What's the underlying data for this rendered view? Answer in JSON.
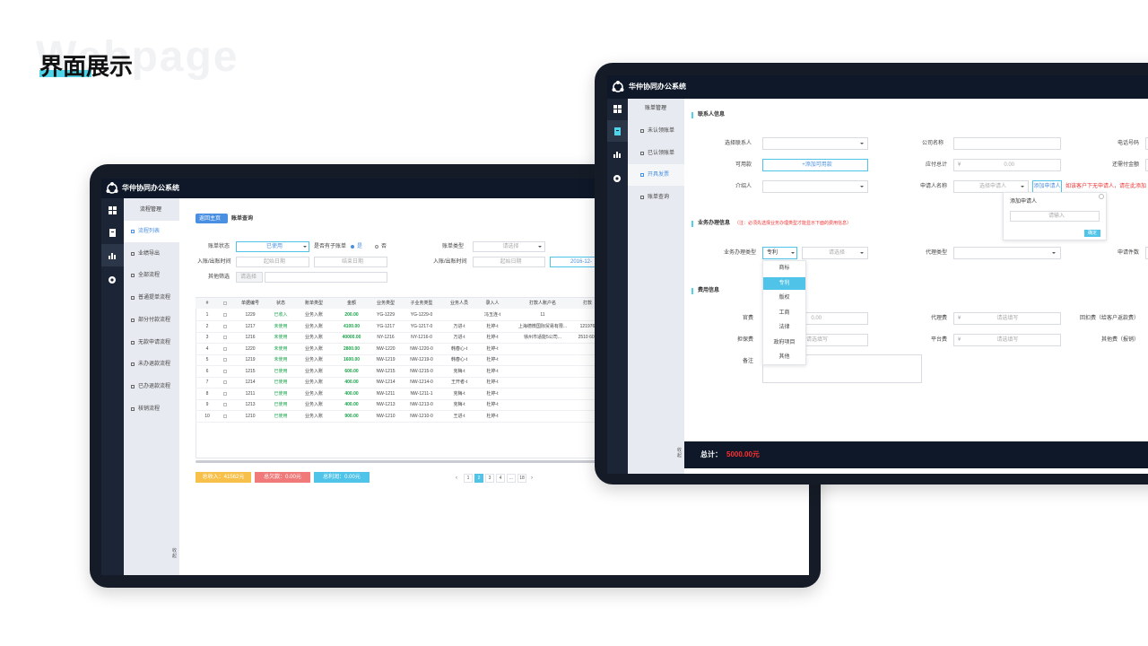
{
  "page": {
    "title": "界面展示",
    "watermark": "Webpage"
  },
  "left": {
    "app_name": "华仲协同办公系统",
    "menu_title": "流程管理",
    "menu": [
      "流程列表",
      "业绩导出",
      "全部流程",
      "普通提单流程",
      "部分付款流程",
      "无款申请流程",
      "未办退款流程",
      "已办退款流程",
      "核销流程"
    ],
    "collapse": "收起",
    "back": "返回主页",
    "crumb": "账单查询",
    "filters": {
      "status_label": "账单状态",
      "status_value": "已使用",
      "has_sub": "是否有子账单",
      "yes": "是",
      "no": "否",
      "type_label": "账单类型",
      "placeholder": "请选择",
      "time_label": "入账/出账时间",
      "start": "起始日期",
      "end": "结束日期",
      "date_value": "2016-12-",
      "other_label": "其他筛选"
    },
    "table": {
      "headers": [
        "#",
        "单据编号",
        "状态",
        "账单类型",
        "金额",
        "业务类型",
        "子业务类型",
        "业务人员",
        "录入人",
        "打款人账户名",
        "打款"
      ],
      "rows": [
        [
          "1",
          "1229",
          "已收入",
          "业务入账",
          "200.00",
          "YG-1229",
          "YG-1229-0",
          null,
          "冯玉连-t",
          "11",
          null
        ],
        [
          "2",
          "1217",
          "未使用",
          "业务入账",
          "4100.00",
          "YG-1217",
          "YG-1217-0",
          "万进-t",
          "杜婷-t",
          "上海德微国际贸易有限...",
          "121976"
        ],
        [
          "3",
          "1216",
          "未使用",
          "业务入账",
          "40000.00",
          "NY-1216",
          "NY-1216-0",
          "万进-t",
          "杜婷-t",
          "徐州市适能5公司...",
          "2510 601"
        ],
        [
          "4",
          "1220",
          "未使用",
          "业务入账",
          "2800.00",
          "NW-1220",
          "NW-1220-0",
          "韩春心-t",
          "杜婷-t",
          null,
          null
        ],
        [
          "5",
          "1219",
          "未使用",
          "业务入账",
          "1600.00",
          "NW-1219",
          "NW-1219-0",
          "韩春心-t",
          "杜婷-t",
          null,
          null
        ],
        [
          "6",
          "1215",
          "已使用",
          "业务入账",
          "600.00",
          "NW-1215",
          "NW-1215-0",
          "克梅-t",
          "杜婷-t",
          null,
          null
        ],
        [
          "7",
          "1214",
          "已使用",
          "业务入账",
          "400.00",
          "NW-1214",
          "NW-1214-0",
          "王开者-t",
          "杜婷-t",
          null,
          null
        ],
        [
          "8",
          "1211",
          "已使用",
          "业务入账",
          "400.00",
          "NW-1211",
          "NW-1211-1",
          "克梅-t",
          "杜婷-t",
          null,
          null
        ],
        [
          "9",
          "1213",
          "已使用",
          "业务入账",
          "400.00",
          "NW-1213",
          "NW-1213-0",
          "克梅-t",
          "杜婷-t",
          null,
          null
        ],
        [
          "10",
          "1210",
          "已使用",
          "业务入账",
          "900.00",
          "NW-1210",
          "NW-1210-0",
          "王进-t",
          "杜婷-t",
          null,
          null
        ]
      ]
    },
    "summary": [
      "总收入：41562元",
      "总欠款：0.00元",
      "总利润：0.00元"
    ],
    "pagination": [
      "1",
      "2",
      "3",
      "4",
      "...",
      "18"
    ]
  },
  "right": {
    "app_name": "华仲协同办公系统",
    "menu_title": "账单管理",
    "menu": [
      "未认领账单",
      "已认领账单",
      "开具发票",
      "账单查询"
    ],
    "collapse": "收起",
    "contact": {
      "title": "联系人信息",
      "select_contact": "选择联系人",
      "company": "公司名称",
      "phone": "电话号码",
      "available": "可用款",
      "add_available": "+添加可用款",
      "payable_total": "应付总计",
      "currency": "¥",
      "payable_value": "0.00",
      "remaining": "还需付金额",
      "introducer": "介绍人",
      "applicant": "申请人名称",
      "choose_applicant": "选择申请人",
      "add_applicant": "添加申请人",
      "applicant_note": "如该客户下无申请人，请在此添加"
    },
    "popover": {
      "title": "添加申请人",
      "placeholder": "请输入",
      "confirm": "确定"
    },
    "business": {
      "title": "业务办理信息",
      "note": "（注：必须先选择业务办理类型才能显示下面的费用信息）",
      "type_label": "业务办理类型",
      "type_value": "专利",
      "sub_placeholder": "请选择",
      "agent_type": "代理类型",
      "count": "申请件数",
      "options": [
        "商标",
        "专利",
        "版权",
        "工商",
        "法律",
        "政府项目",
        "其他"
      ]
    },
    "fees": {
      "title": "费用信息",
      "official": "官费",
      "official_value": "0.00",
      "agency": "代理费",
      "fill_placeholder": "请选填写",
      "rebate": "回扣费（给客户返款费）",
      "guarantee": "担保费",
      "platform": "平台费",
      "other": "其他费（报销）",
      "remark": "备注"
    },
    "total_label": "总计：",
    "total_value": "5000.00元"
  }
}
